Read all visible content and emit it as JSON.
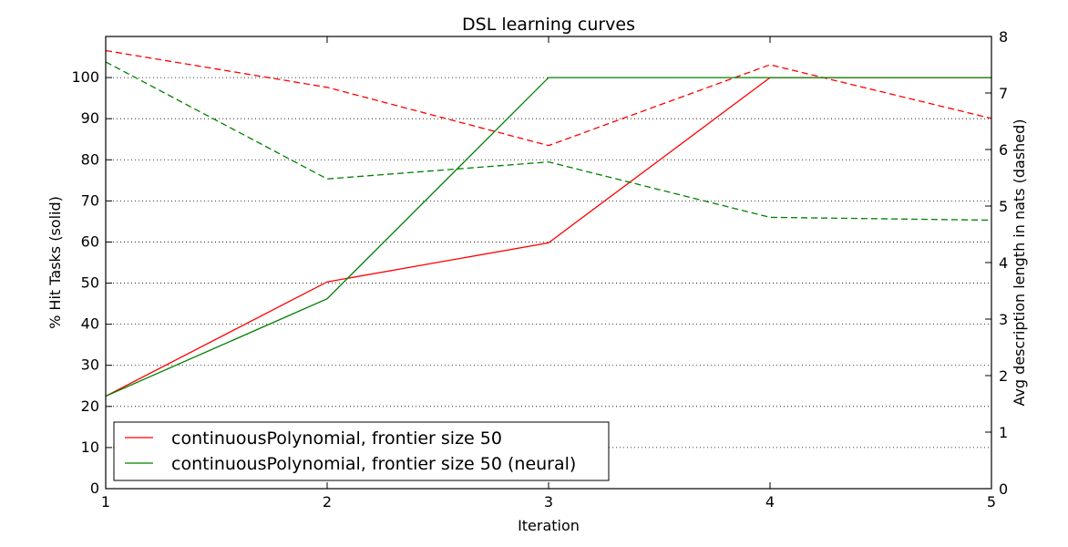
{
  "chart_data": {
    "type": "line",
    "title": "DSL learning curves",
    "xlabel": "Iteration",
    "ylabel": "% Hit Tasks (solid)",
    "ylabel_right": "Avg description length in nats (dashed)",
    "x": [
      1,
      2,
      3,
      4,
      5
    ],
    "xlim": [
      1,
      5
    ],
    "ylim": [
      0,
      110
    ],
    "ylim_right": [
      0,
      8
    ],
    "x_ticks": [
      "1",
      "2",
      "3",
      "4",
      "5"
    ],
    "y_ticks": [
      "0",
      "10",
      "20",
      "30",
      "40",
      "50",
      "60",
      "70",
      "80",
      "90",
      "100"
    ],
    "y_right_ticks": [
      "0",
      "1",
      "2",
      "3",
      "4",
      "5",
      "6",
      "7",
      "8"
    ],
    "grid": "horizontal dotted",
    "legend_position": "lower-left",
    "series": [
      {
        "name": "continuousPolynomial, frontier size 50",
        "color": "#ff0000",
        "solid_values": [
          22.5,
          50.3,
          59.8,
          100,
          100
        ],
        "dashed_values": [
          7.75,
          7.1,
          6.07,
          7.5,
          6.55
        ]
      },
      {
        "name": "continuousPolynomial, frontier size 50 (neural)",
        "color": "#008000",
        "solid_values": [
          22.5,
          46.2,
          100,
          100,
          100
        ],
        "dashed_values": [
          7.55,
          5.48,
          5.78,
          4.8,
          4.75
        ]
      }
    ]
  }
}
